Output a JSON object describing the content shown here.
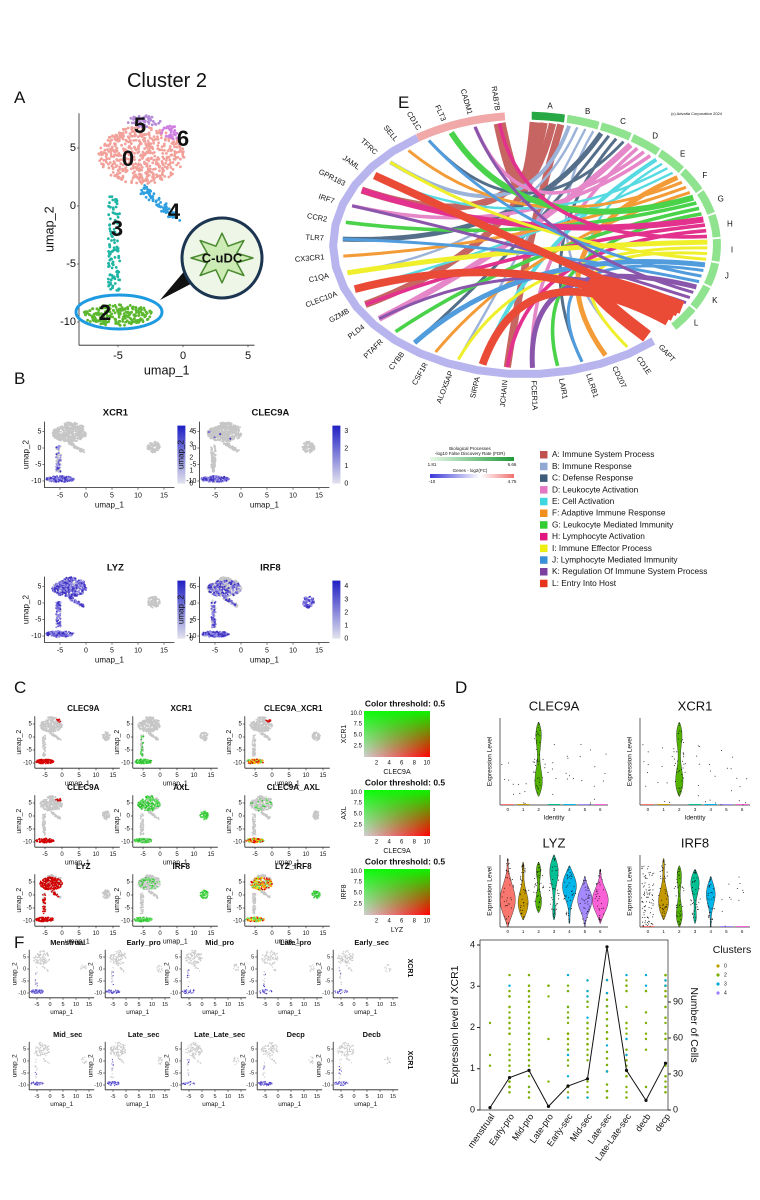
{
  "figure": {
    "A": {
      "letter": "A",
      "title": "Cluster 2",
      "xlabel": "umap_1",
      "ylabel": "umap_2",
      "xticks": [
        "-5",
        "0",
        "5"
      ],
      "yticks": [
        "5",
        "0",
        "-5",
        "-10"
      ],
      "clusters": [
        "0",
        "2",
        "3",
        "4",
        "5",
        "6"
      ],
      "callout": "C-uDC"
    },
    "B": {
      "letter": "B",
      "xlabel": "umap_1",
      "ylabel": "umap_2",
      "xticks": [
        "-5",
        "0",
        "5",
        "10",
        "15"
      ],
      "yticks": [
        "5",
        "0",
        "-5",
        "-10"
      ],
      "plots": [
        {
          "gene": "XCR1",
          "scale": [
            "4",
            "3",
            "2",
            "1",
            "0"
          ]
        },
        {
          "gene": "CLEC9A",
          "scale": [
            "3",
            "2",
            "1",
            "0"
          ]
        },
        {
          "gene": "LYZ",
          "scale": [
            "6",
            "4",
            "2",
            "0"
          ]
        },
        {
          "gene": "IRF8",
          "scale": [
            "4",
            "3",
            "2",
            "1",
            "0"
          ]
        }
      ]
    },
    "C": {
      "letter": "C",
      "xlabel": "umap_1",
      "ylabel": "umap_2",
      "xticks": [
        "-5",
        "0",
        "5",
        "10",
        "15"
      ],
      "yticks": [
        "5",
        "0",
        "-5",
        "-10"
      ],
      "rows": [
        {
          "plots": [
            "CLEC9A",
            "XCR1",
            "CLEC9A_XCR1"
          ],
          "threshold": "Color threshold: 0.5",
          "heat_x": "CLEC9A",
          "heat_y": "XCR1"
        },
        {
          "plots": [
            "CLEC9A",
            "AXL",
            "CLEC9A_AXL"
          ],
          "threshold": "Color threshold: 0.5",
          "heat_x": "CLEC9A",
          "heat_y": "AXL"
        },
        {
          "plots": [
            "LYZ",
            "IRF8",
            "LYZ_IRF8"
          ],
          "threshold": "Color threshold: 0.5",
          "heat_x": "LYZ",
          "heat_y": "IRF8"
        }
      ],
      "heat_xticks": [
        "2",
        "4",
        "6",
        "8",
        "10"
      ],
      "heat_yticks": [
        "2.5",
        "5.0",
        "7.5",
        "10.0"
      ]
    },
    "D": {
      "letter": "D",
      "ylabel": "Expression Level",
      "xlabel": "Identity",
      "identities": [
        "0",
        "1",
        "2",
        "3",
        "4",
        "5",
        "6"
      ],
      "plots": [
        "CLEC9A",
        "XCR1",
        "LYZ",
        "IRF8"
      ]
    },
    "E": {
      "letter": "E",
      "copyright": "(c) Advaita Corporation 2024",
      "genes": [
        "RAB7B",
        "CADM1",
        "FLT3",
        "CD1C",
        "SELL",
        "TFRC",
        "JAML",
        "GPR183",
        "IRF7",
        "CCR2",
        "TLR7",
        "CX3CR1",
        "C1QA",
        "CLEC10A",
        "GZMB",
        "PLD4",
        "PTAFR",
        "CYBB",
        "CSF1R",
        "ALOX5AP",
        "SIRPA",
        "JCHAIN",
        "FCER1A",
        "LAIR1",
        "LILRB1",
        "CD207",
        "CD1E",
        "GAPT"
      ],
      "terms": [
        {
          "letter": "A",
          "name": "A: Immune System Process",
          "color": "#c0504d"
        },
        {
          "letter": "B",
          "name": "B: Immune Response",
          "color": "#8fa9d4"
        },
        {
          "letter": "C",
          "name": "C: Defense Response",
          "color": "#3e5c7a"
        },
        {
          "letter": "D",
          "name": "D: Leukocyte Activation",
          "color": "#e377c2"
        },
        {
          "letter": "E",
          "name": "E: Cell Activation",
          "color": "#3fd6df"
        },
        {
          "letter": "F",
          "name": "F: Adaptive Immune Response",
          "color": "#f28e1c"
        },
        {
          "letter": "G",
          "name": "G: Leukocyte Mediated Immunity",
          "color": "#33cc33"
        },
        {
          "letter": "H",
          "name": "H: Lymphocyte Activation",
          "color": "#e0157f"
        },
        {
          "letter": "I",
          "name": "I: Immune Effector Process",
          "color": "#eded10"
        },
        {
          "letter": "J",
          "name": "J: Lymphocyte Mediated Immunity",
          "color": "#3a8fd9"
        },
        {
          "letter": "K",
          "name": "K: Regulation Of Immune System Process",
          "color": "#7b3fa0"
        },
        {
          "letter": "L",
          "name": "L: Entry Into Host",
          "color": "#e8331c"
        }
      ],
      "scale": {
        "title1": "Biological Processes",
        "title2": "-log10 False Discovery Rate (FDR)",
        "min1": "1.81",
        "max1": "6.66",
        "title3": "Genes - log2(FC)",
        "min2": "-10",
        "max2": "4.75"
      }
    },
    "F": {
      "letter": "F",
      "xlabel": "umap_1",
      "ylabel": "umap_2",
      "xticks": [
        "-5",
        "0",
        "5",
        "10",
        "15"
      ],
      "yticks": [
        "5",
        "0",
        "-5",
        "-10"
      ],
      "stages": [
        "Menstrual",
        "Early_pro",
        "Mid_pro",
        "Late_pro",
        "Early_sec",
        "Mid_sec",
        "Late_sec",
        "Late_Late_sec",
        "Decp",
        "Decb"
      ],
      "gene": "XCR1",
      "plot": {
        "categories": [
          "menstrual",
          "Early-pro",
          "Mid-pro",
          "Late-pro",
          "Early-sec",
          "Mid-sec",
          "Late-sec",
          "Late-Late-sec",
          "decb",
          "decp"
        ],
        "ylabel": "Expression level of XCR1",
        "y2label": "Number of Cells",
        "yticks": [
          "0",
          "1",
          "2",
          "3",
          "4"
        ],
        "y2ticks": [
          "0",
          "30",
          "60",
          "90"
        ],
        "cells": [
          2,
          27,
          33,
          3,
          20,
          26,
          136,
          33,
          8,
          39
        ],
        "legend_title": "Clusters",
        "clusters": [
          "0",
          "2",
          "3",
          "4"
        ],
        "cluster_colors": [
          "#b8a000",
          "#7cae00",
          "#00a9d6",
          "#9a7cff"
        ]
      }
    }
  }
}
